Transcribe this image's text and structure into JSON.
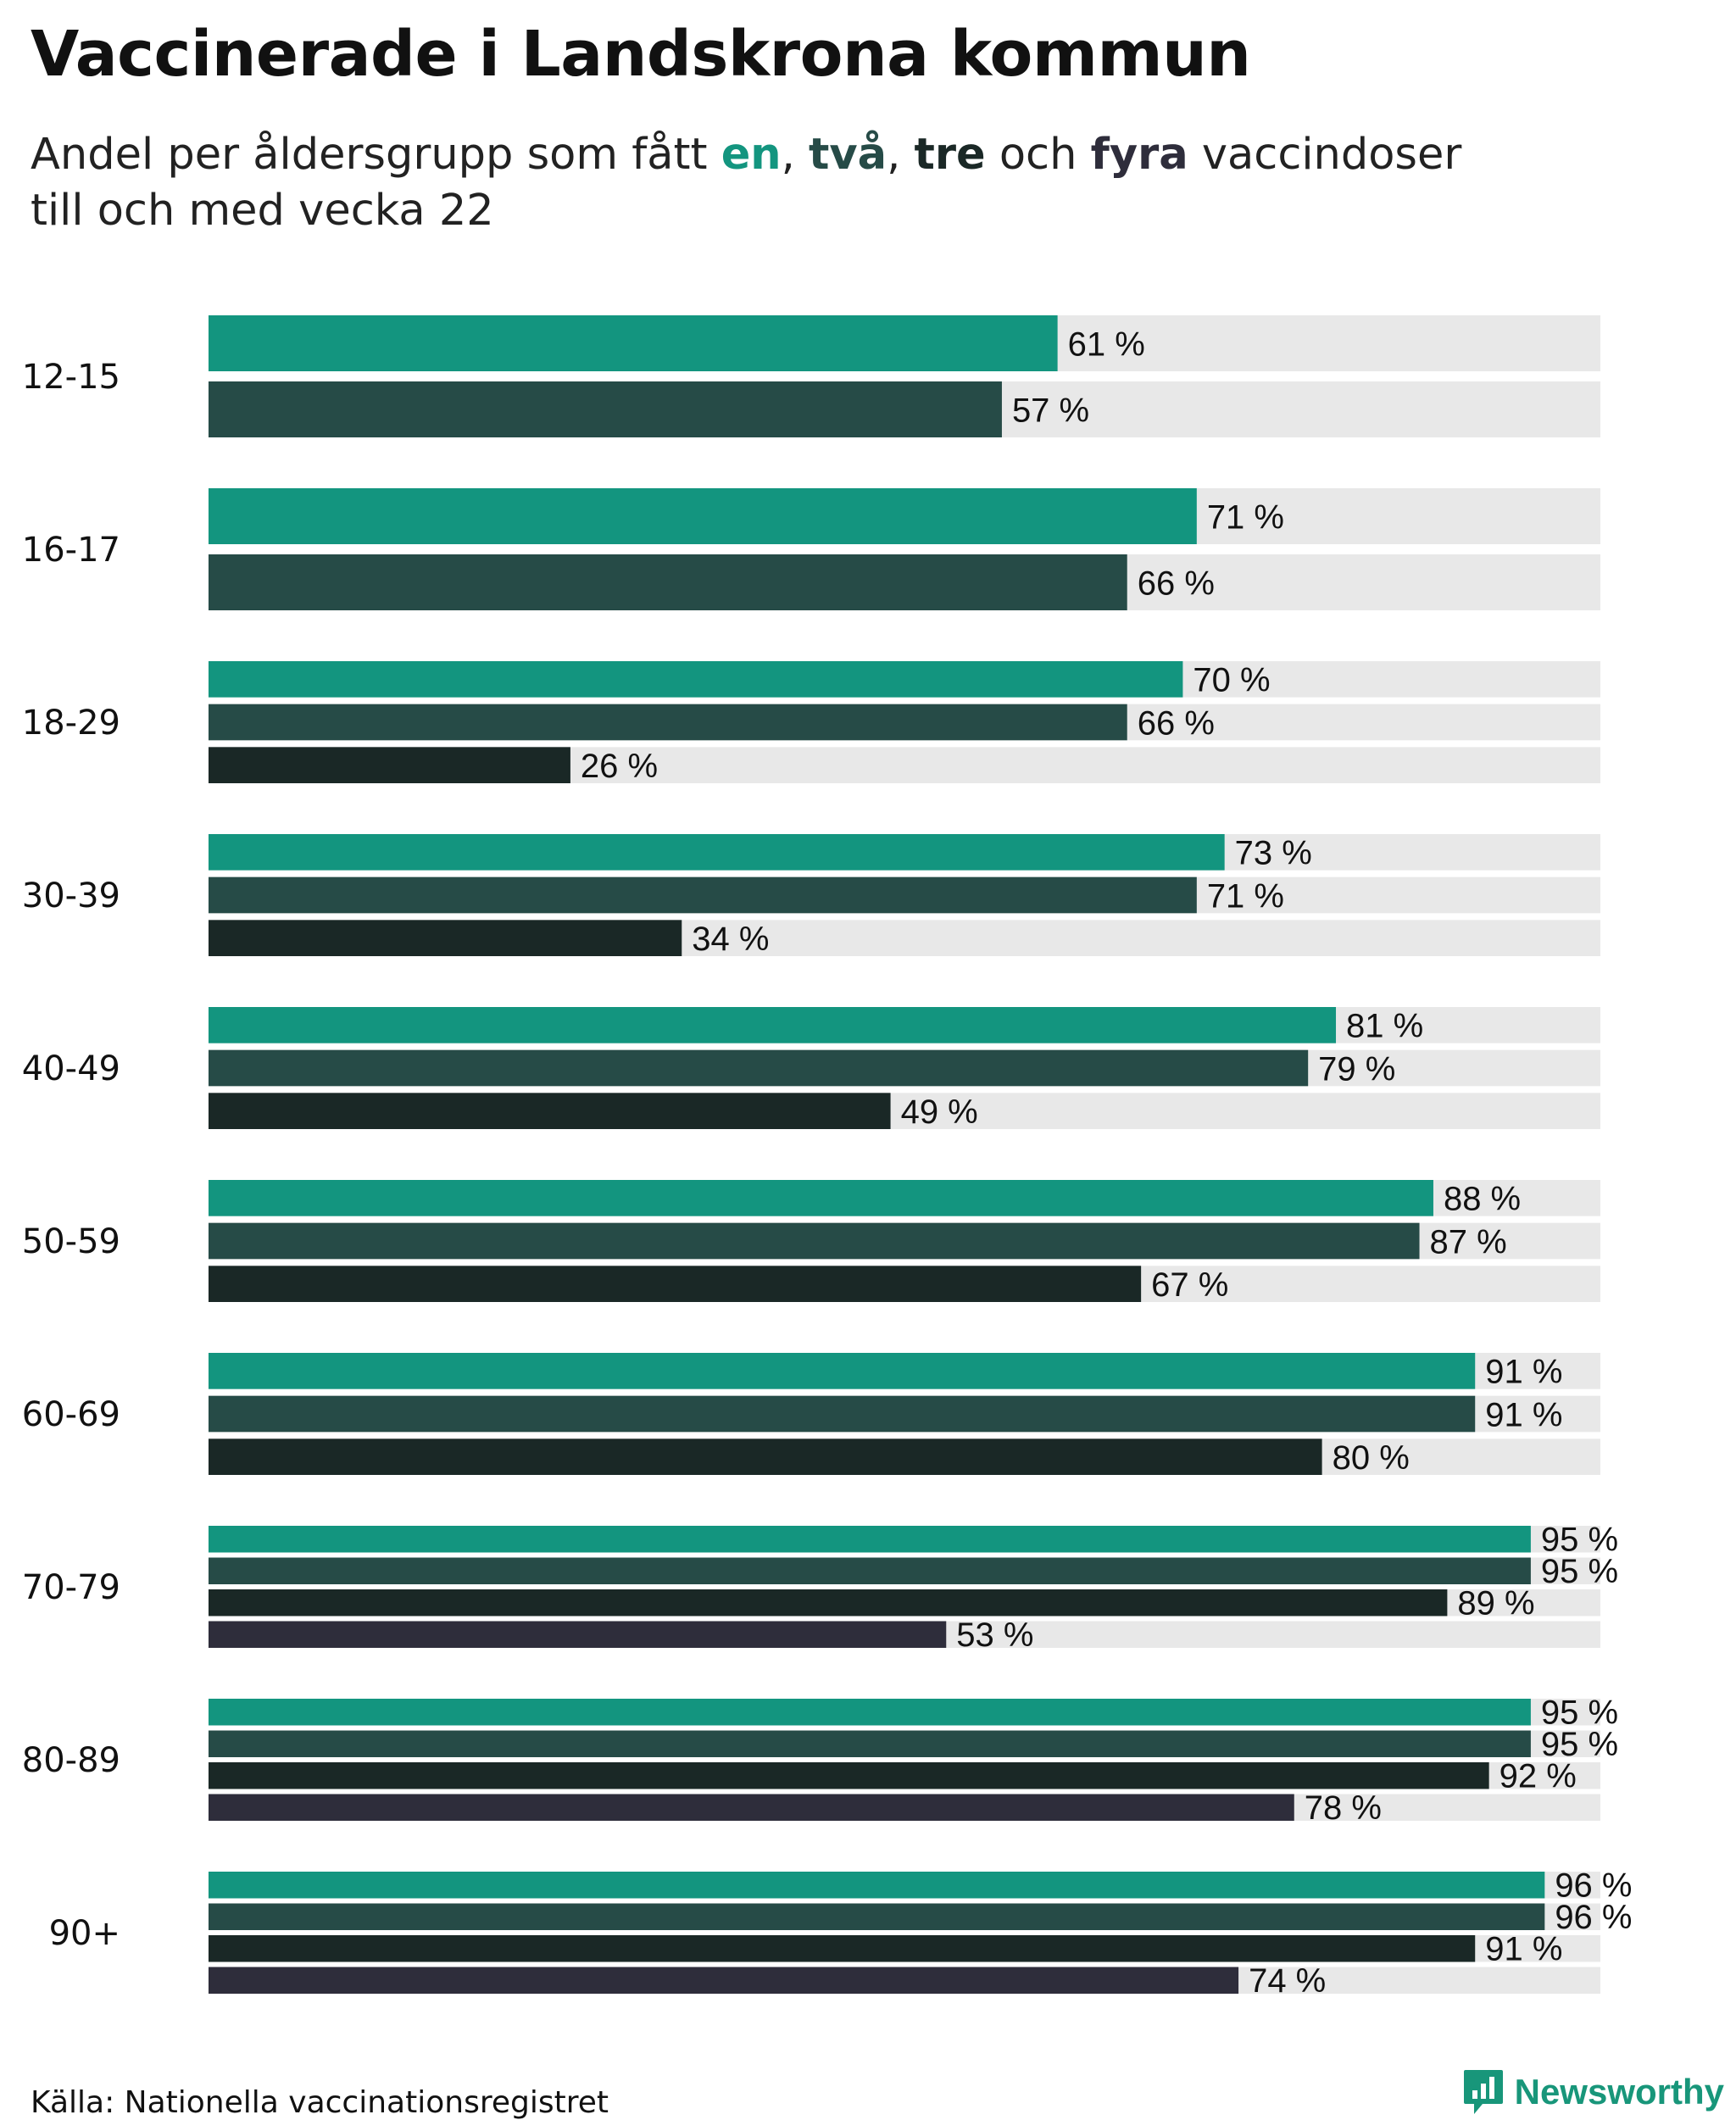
{
  "title": "Vaccinerade i Landskrona kommun",
  "subtitle": {
    "part1": "Andel per åldersgrupp som fått ",
    "word1": "en",
    "sep1": ", ",
    "word2": "två",
    "sep2": ", ",
    "word3": "tre",
    "part2": " och ",
    "word4": "fyra",
    "part3": " vaccindoser",
    "line2": "till och med vecka 22"
  },
  "colors": {
    "dose1": "#13957f",
    "dose2": "#264b47",
    "dose3": "#1a2826",
    "dose4": "#2e2d3b",
    "track": "#e8e8e8"
  },
  "chart_data": {
    "type": "bar",
    "orientation": "horizontal",
    "value_suffix": " %",
    "xlim": [
      0,
      100
    ],
    "grid": false,
    "categories": [
      "12-15",
      "16-17",
      "18-29",
      "30-39",
      "40-49",
      "50-59",
      "60-69",
      "70-79",
      "80-89",
      "90+"
    ],
    "series": [
      {
        "name": "en",
        "color": "#13957f",
        "values": [
          61,
          71,
          70,
          73,
          81,
          88,
          91,
          95,
          95,
          96
        ]
      },
      {
        "name": "två",
        "color": "#264b47",
        "values": [
          57,
          66,
          66,
          71,
          79,
          87,
          91,
          95,
          95,
          96
        ]
      },
      {
        "name": "tre",
        "color": "#1a2826",
        "values": [
          null,
          null,
          26,
          34,
          49,
          67,
          80,
          89,
          92,
          91
        ]
      },
      {
        "name": "fyra",
        "color": "#2e2d3b",
        "values": [
          null,
          null,
          null,
          null,
          null,
          null,
          null,
          53,
          78,
          74
        ]
      }
    ]
  },
  "footer": {
    "source": "Källa: Nationella vaccinationsregistret",
    "brand": "Newsworthy",
    "brand_icon": "newsworthy-logo-icon"
  }
}
